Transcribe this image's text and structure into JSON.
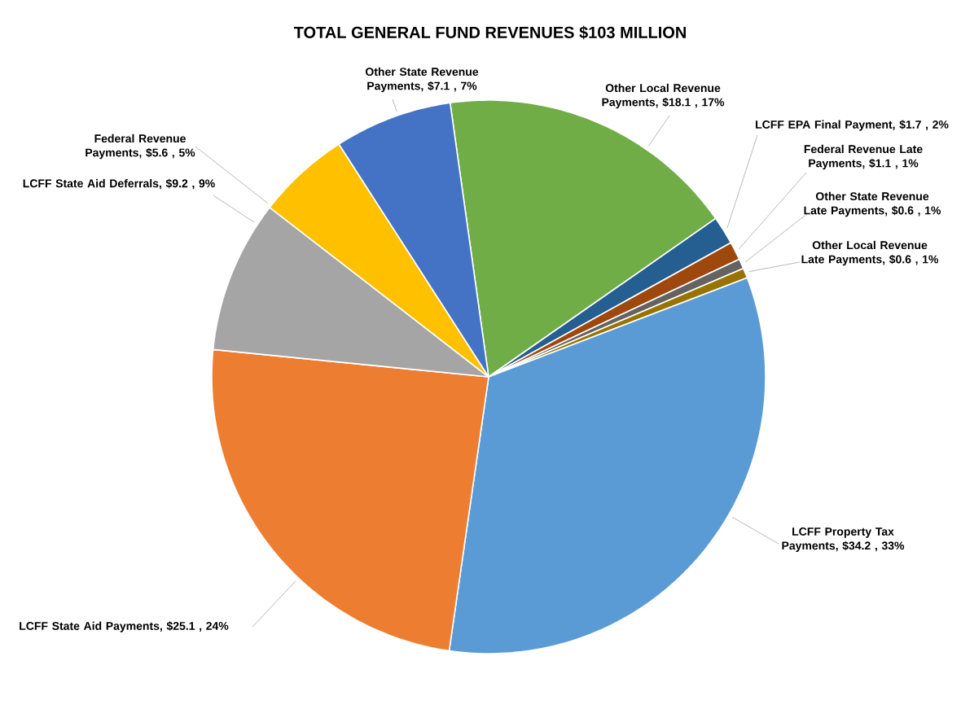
{
  "chart_data": {
    "type": "pie",
    "title": "TOTAL GENERAL FUND REVENUES $103 MILLION",
    "categories": [
      "Other Local Revenue Payments",
      "LCFF EPA Final Payment",
      "Federal Revenue Late Payments",
      "Other State Revenue Late Payments",
      "Other Local Revenue Late Payments",
      "LCFF Property Tax Payments",
      "LCFF State Aid Payments",
      "LCFF State Aid Deferrals",
      "Federal Revenue Payments",
      "Other State Revenue Payments"
    ],
    "values": [
      18.1,
      1.7,
      1.1,
      0.6,
      0.6,
      34.2,
      25.1,
      9.2,
      5.6,
      7.1
    ],
    "colors": [
      "#70ad47",
      "#255e91",
      "#9e480e",
      "#636363",
      "#997300",
      "#5b9bd5",
      "#ed7d31",
      "#a5a5a5",
      "#ffc000",
      "#4472c4"
    ],
    "value_labels": [
      ", $18.1 , 17%",
      ", $1.7 , 2%",
      ", $1.1 , 1%",
      ", $0.6 , 1%",
      ", $0.6 , 1%",
      ", $34.2 , 33%",
      ", $25.1 , 24%",
      ", $9.2 , 9%",
      ", $5.6 , 5%",
      ", $7.1 , 7%"
    ]
  }
}
